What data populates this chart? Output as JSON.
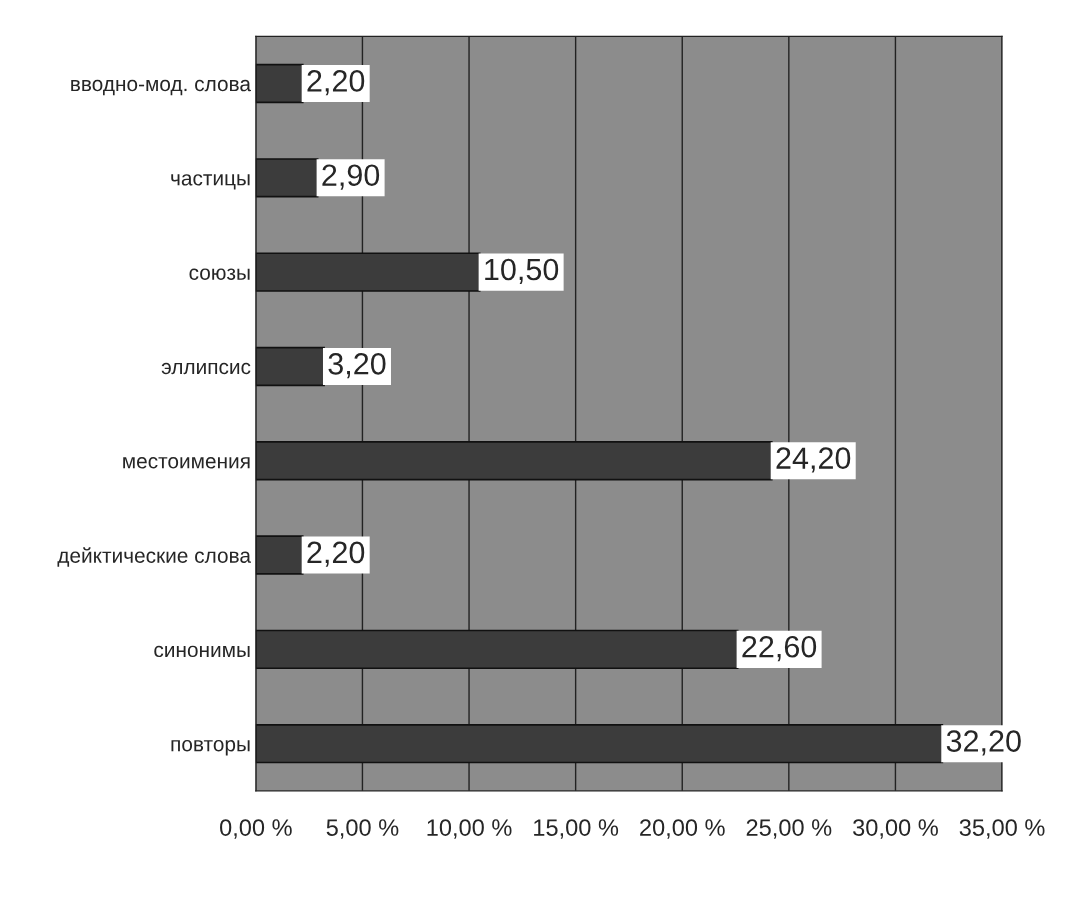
{
  "chart_data": {
    "type": "bar",
    "orientation": "horizontal",
    "categories": [
      "вводно-мод. слова",
      "частицы",
      "союзы",
      "эллипсис",
      "местоимения",
      "дейктические слова",
      "синонимы",
      "повторы"
    ],
    "values": [
      2.2,
      2.9,
      10.5,
      3.2,
      24.2,
      2.2,
      22.6,
      32.2
    ],
    "value_labels": [
      "2,20",
      "2,90",
      "10,50",
      "3,20",
      "24,20",
      "2,20",
      "22,60",
      "32,20"
    ],
    "color": "#3c3c3c",
    "xlim": [
      0,
      35
    ],
    "xticks": [
      {
        "value": 0,
        "label": "0,00 %"
      },
      {
        "value": 5,
        "label": "5,00 %"
      },
      {
        "value": 10,
        "label": "10,00 %"
      },
      {
        "value": 15,
        "label": "15,00 %"
      },
      {
        "value": 20,
        "label": "20,00 %"
      },
      {
        "value": 25,
        "label": "25,00 %"
      },
      {
        "value": 30,
        "label": "30,00 %"
      },
      {
        "value": 35,
        "label": "35,00 %"
      }
    ],
    "grid": "x"
  }
}
